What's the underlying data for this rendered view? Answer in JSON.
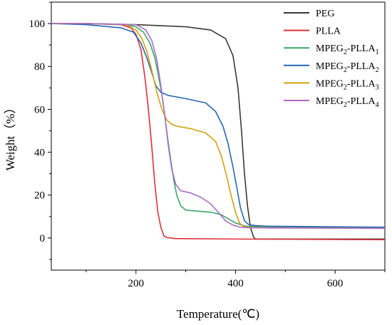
{
  "chart_data": {
    "type": "line",
    "xlabel": "Temperature(℃)",
    "ylabel": "Weight（%）",
    "xlim": [
      30,
      700
    ],
    "ylim": [
      -15,
      110
    ],
    "x_ticks": [
      200,
      400,
      600
    ],
    "y_ticks": [
      0,
      20,
      40,
      60,
      80,
      100
    ],
    "grid": false,
    "legend_position": "top-right",
    "series": [
      {
        "name": "PEG",
        "name_parts": {
          "base": "PEG",
          "sub": "",
          "suffix": "",
          "sub2": ""
        },
        "color": "#3a3a3a",
        "x": [
          30,
          100,
          200,
          300,
          350,
          380,
          395,
          405,
          412,
          418,
          424,
          430,
          436,
          440,
          460,
          700
        ],
        "y": [
          100,
          100,
          99.5,
          98.5,
          97,
          93,
          85,
          70,
          50,
          30,
          15,
          5,
          0.5,
          -0.5,
          -0.5,
          -0.5
        ]
      },
      {
        "name": "PLLA",
        "name_parts": {
          "base": "PLLA",
          "sub": "",
          "suffix": "",
          "sub2": ""
        },
        "color": "#e0303a",
        "x": [
          30,
          100,
          170,
          190,
          200,
          210,
          218,
          225,
          232,
          238,
          244,
          250,
          256,
          262,
          280,
          400,
          700
        ],
        "y": [
          100,
          100,
          99.5,
          98,
          95,
          88,
          75,
          60,
          42,
          25,
          12,
          5,
          1,
          0.2,
          -0.3,
          -0.5,
          -0.8
        ]
      },
      {
        "name": "MPEG2-PLLA1",
        "name_parts": {
          "base": "MPEG",
          "sub": "2",
          "suffix": "-PLLA",
          "sub2": "1"
        },
        "color": "#3aa866",
        "x": [
          30,
          100,
          180,
          200,
          215,
          228,
          238,
          245,
          252,
          258,
          264,
          270,
          276,
          282,
          290,
          300,
          350,
          370,
          385,
          400,
          420,
          500,
          700
        ],
        "y": [
          100,
          100,
          99.5,
          98.5,
          96,
          91,
          84,
          76,
          67,
          57,
          46,
          36,
          27,
          20,
          15,
          13,
          12,
          11,
          9,
          7,
          5.5,
          5,
          4.8
        ]
      },
      {
        "name": "MPEG2-PLLA2",
        "name_parts": {
          "base": "MPEG",
          "sub": "2",
          "suffix": "-PLLA",
          "sub2": "2"
        },
        "color": "#2867b2",
        "x": [
          30,
          100,
          170,
          195,
          210,
          222,
          232,
          240,
          250,
          265,
          300,
          340,
          360,
          375,
          385,
          395,
          403,
          410,
          418,
          425,
          432,
          440,
          460,
          700
        ],
        "y": [
          100,
          99.5,
          98,
          96,
          91,
          84,
          77,
          71,
          68,
          66.5,
          65,
          63,
          59,
          52,
          44,
          33,
          23,
          14,
          8,
          6.5,
          6,
          5.8,
          5.5,
          5
        ]
      },
      {
        "name": "MPEG2-PLLA3",
        "name_parts": {
          "base": "MPEG",
          "sub": "2",
          "suffix": "-PLLA",
          "sub2": "3"
        },
        "color": "#d4a20f",
        "x": [
          30,
          100,
          180,
          200,
          212,
          222,
          232,
          242,
          252,
          262,
          272,
          285,
          310,
          340,
          360,
          372,
          382,
          392,
          400,
          408,
          415,
          425,
          450,
          700
        ],
        "y": [
          100,
          100,
          99.5,
          97,
          93,
          87,
          78,
          68,
          60,
          55,
          53,
          52,
          51,
          49,
          45,
          38,
          29,
          19,
          12,
          7,
          5.5,
          5,
          4.8,
          4.5
        ]
      },
      {
        "name": "MPEG2-PLLA4",
        "name_parts": {
          "base": "MPEG",
          "sub": "2",
          "suffix": "-PLLA",
          "sub2": "4"
        },
        "color": "#a86cc8",
        "x": [
          30,
          100,
          200,
          220,
          232,
          242,
          250,
          258,
          265,
          272,
          280,
          290,
          310,
          330,
          350,
          365,
          380,
          395,
          410,
          425,
          450,
          700
        ],
        "y": [
          100,
          100,
          99.5,
          97,
          92,
          83,
          71,
          57,
          43,
          32,
          25,
          22,
          21,
          19,
          16,
          12,
          8,
          6,
          5,
          4.8,
          4.7,
          4.5
        ]
      }
    ]
  }
}
